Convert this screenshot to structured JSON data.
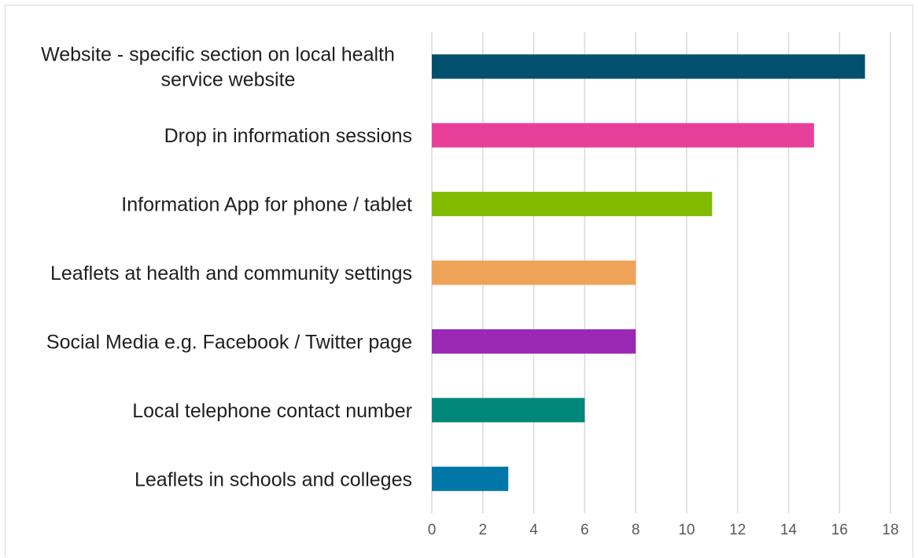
{
  "chart_data": {
    "type": "bar",
    "orientation": "horizontal",
    "title": "",
    "xlabel": "",
    "ylabel": "",
    "xlim": [
      0,
      18
    ],
    "x_ticks": [
      0,
      2,
      4,
      6,
      8,
      10,
      12,
      14,
      16,
      18
    ],
    "grid": "vertical",
    "legend": "none",
    "categories": [
      "Website - specific section on local health service website",
      "Drop in information sessions",
      "Information App for phone / tablet",
      "Leaflets at health and community settings",
      "Social Media e.g. Facebook / Twitter page",
      "Local telephone contact number",
      "Leaflets in schools and colleges"
    ],
    "category_lines": [
      [
        "Website - specific section on local health",
        "service website"
      ],
      [
        "Drop in information sessions"
      ],
      [
        "Information App for phone / tablet"
      ],
      [
        "Leaflets at health and community settings"
      ],
      [
        "Social Media e.g. Facebook / Twitter page"
      ],
      [
        "Local telephone contact number"
      ],
      [
        "Leaflets in schools and colleges"
      ]
    ],
    "values": [
      17,
      15,
      11,
      8,
      8,
      6,
      3
    ],
    "colors": [
      "#00506e",
      "#e8409a",
      "#82bc00",
      "#eea358",
      "#9b28b4",
      "#00877a",
      "#0077a8"
    ]
  }
}
